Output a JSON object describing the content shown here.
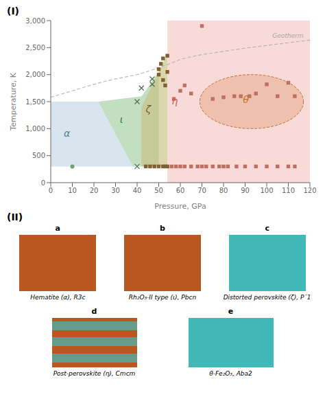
{
  "chart_data": {
    "type": "scatter",
    "xlabel": "Pressure, GPa",
    "ylabel": "Temperature, K",
    "xlim": [
      0,
      120
    ],
    "ylim": [
      0,
      3000
    ],
    "xticks": [
      0,
      10,
      20,
      30,
      40,
      50,
      60,
      70,
      80,
      90,
      100,
      110,
      120
    ],
    "yticks": [
      0,
      500,
      {
        "value": 1000,
        "label": "1,000"
      },
      {
        "value": 1500,
        "label": "1,500"
      },
      {
        "value": 2000,
        "label": "2,000"
      },
      {
        "value": 2500,
        "label": "2,500"
      },
      {
        "value": 3000,
        "label": "3,000"
      }
    ],
    "grid": false,
    "regions": [
      {
        "vertices": [
          [
            0,
            0
          ],
          [
            0,
            1500
          ],
          [
            22,
            1500
          ],
          [
            38,
            300
          ],
          [
            0,
            300
          ]
        ],
        "color": "#b8cfe0"
      },
      {
        "vertices": [
          [
            22,
            1500
          ],
          [
            42,
            1600
          ],
          [
            50,
            2050
          ],
          [
            50,
            300
          ],
          [
            38,
            300
          ]
        ],
        "color": "#90c490"
      },
      {
        "vertices": [
          [
            42,
            1400
          ],
          [
            50,
            2050
          ],
          [
            54,
            2400
          ],
          [
            54,
            300
          ],
          [
            42,
            300
          ]
        ],
        "color": "#c8c080"
      },
      {
        "vertices": [
          [
            54,
            0
          ],
          [
            54,
            3000
          ],
          [
            120,
            3000
          ],
          [
            120,
            0
          ]
        ],
        "color": "#f0b0a8"
      }
    ],
    "ellipses": [
      {
        "cx": 93,
        "cy": 1500,
        "width": 48,
        "height": 1000,
        "color": "#e09060",
        "edge_color": "#c07030"
      }
    ],
    "series": [
      {
        "type": "line",
        "line_style": "dashed",
        "color": "#aaaaaa",
        "x": [
          0,
          5,
          10,
          15,
          20,
          25,
          30,
          35,
          40,
          45,
          50,
          55,
          60,
          65,
          70,
          80,
          90,
          100,
          110,
          120
        ],
        "y": [
          1580,
          1640,
          1700,
          1760,
          1820,
          1875,
          1920,
          1960,
          2000,
          2060,
          2130,
          2200,
          2280,
          2330,
          2370,
          2430,
          2490,
          2540,
          2590,
          2640
        ],
        "label": {
          "text": "Geotherm",
          "x": 117,
          "y": 2660
        }
      },
      {
        "type": "scatter",
        "marker": "circle",
        "color": "#70a070",
        "x": [
          10
        ],
        "y": [
          300
        ]
      },
      {
        "type": "scatter",
        "marker": "x",
        "color": "#507050",
        "x": [
          40,
          40,
          42,
          47,
          47
        ],
        "y": [
          300,
          1500,
          1750,
          1820,
          1920
        ]
      },
      {
        "type": "scatter",
        "marker": "square",
        "color": "#806030",
        "x": [
          44,
          46,
          48,
          50,
          52,
          53,
          54
        ],
        "y": [
          300,
          300,
          300,
          300,
          300,
          300,
          300
        ]
      },
      {
        "type": "scatter",
        "marker": "square",
        "color": "#806030",
        "x": [
          50,
          50,
          51,
          52,
          52,
          53,
          54,
          54
        ],
        "y": [
          2000,
          2100,
          2200,
          1900,
          2300,
          1800,
          2050,
          2350
        ]
      },
      {
        "type": "scatter",
        "marker": "square",
        "color": "#c07060",
        "x": [
          56,
          58,
          60,
          62,
          65,
          68,
          70,
          72,
          75,
          78,
          80
        ],
        "y": [
          300,
          300,
          300,
          300,
          300,
          300,
          300,
          300,
          300,
          300,
          300
        ]
      },
      {
        "type": "scatter",
        "marker": "square",
        "color": "#c07060",
        "x": [
          57,
          60,
          62,
          65,
          70
        ],
        "y": [
          1550,
          1700,
          1800,
          1650,
          2900
        ]
      },
      {
        "type": "scatter",
        "marker": "square",
        "color": "#c07060",
        "x": [
          82,
          86,
          90,
          95,
          100,
          105,
          110,
          113
        ],
        "y": [
          300,
          300,
          300,
          300,
          300,
          300,
          300,
          300
        ]
      },
      {
        "type": "scatter",
        "marker": "square",
        "color": "#c07060",
        "x": [
          75,
          80,
          85,
          88,
          92,
          95,
          100,
          105,
          110,
          113
        ],
        "y": [
          1550,
          1580,
          1600,
          1600,
          1600,
          1650,
          1820,
          1600,
          1850,
          1600
        ]
      }
    ],
    "annotations": [
      {
        "text": "α",
        "x": 6,
        "y": 850,
        "color": "#5080a0"
      },
      {
        "text": "ι",
        "x": 32,
        "y": 1100,
        "color": "#3a7a3a"
      },
      {
        "text": "ζ",
        "x": 44,
        "y": 1300,
        "color": "#706030"
      },
      {
        "text": "η",
        "x": 56,
        "y": 1450,
        "color": "#c06050"
      },
      {
        "text": "θ",
        "x": 89,
        "y": 1480,
        "color": "#c07030"
      }
    ],
    "section_labels": [
      "(I)",
      "(II)"
    ],
    "panels": [
      {
        "label": "a",
        "name": "Hematite (α), R3c",
        "color": "#b85820"
      },
      {
        "label": "b",
        "name": "Rh₂O₃-II type (ι), Pbcn",
        "color": "#b85820"
      },
      {
        "label": "c",
        "name": "Distorted perovskite (ζ), P¯1",
        "color": "#40b8b8"
      },
      {
        "label": "d",
        "name": "Post-perovskite (η), Cmcm",
        "color": "#b85820",
        "secondary_color": "#40b8b8"
      },
      {
        "label": "e",
        "name": "θ-Fe₂O₃, Aba2",
        "color": "#40b8b8"
      }
    ]
  }
}
